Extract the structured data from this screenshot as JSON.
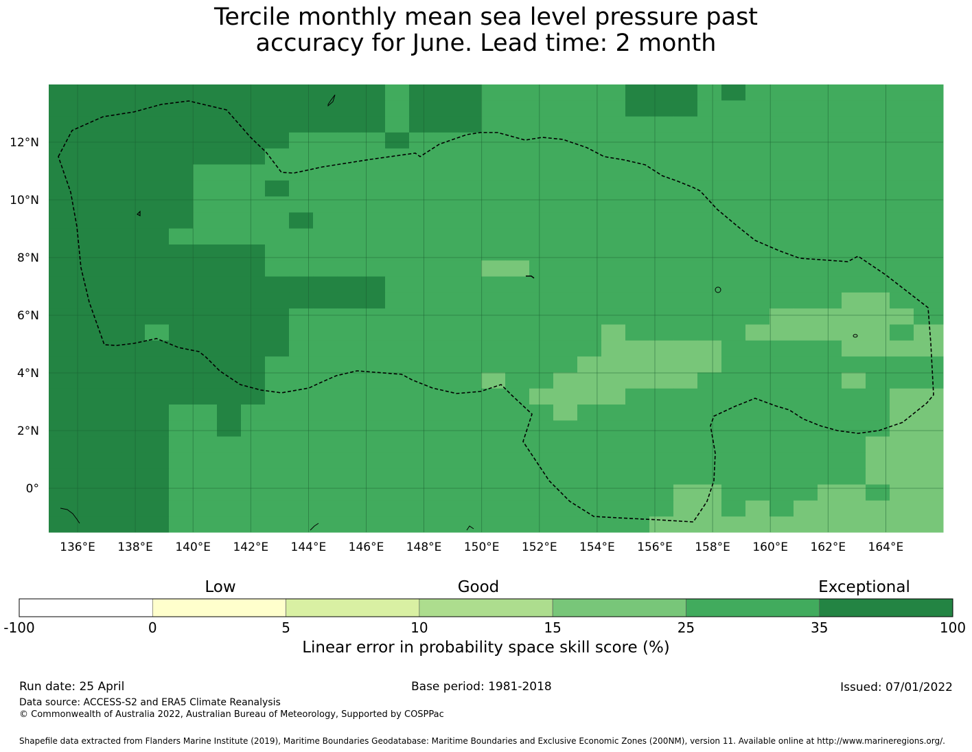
{
  "title": {
    "line1": "Tercile monthly mean sea level pressure past",
    "line2": "accuracy for June. Lead time: 2 month"
  },
  "map": {
    "lon_ticks": [
      "136°E",
      "138°E",
      "140°E",
      "142°E",
      "144°E",
      "146°E",
      "148°E",
      "150°E",
      "152°E",
      "154°E",
      "156°E",
      "158°E",
      "160°E",
      "162°E",
      "164°E"
    ],
    "lat_ticks": [
      "12°N",
      "10°N",
      "8°N",
      "6°N",
      "4°N",
      "2°N",
      "0°"
    ],
    "lon_range": [
      135.0,
      166.0
    ],
    "lat_range": [
      -1.5,
      14.0
    ]
  },
  "colorbar": {
    "categories": [
      {
        "word": "Low",
        "at": 1
      },
      {
        "word": "Good",
        "at": 3
      },
      {
        "word": "Exceptional",
        "at": 6
      }
    ],
    "bins": [
      {
        "from": "-100",
        "to": "0",
        "color": "#ffffff"
      },
      {
        "from": "0",
        "to": "5",
        "color": "#ffffcc"
      },
      {
        "from": "5",
        "to": "10",
        "color": "#d9f0a3"
      },
      {
        "from": "10",
        "to": "15",
        "color": "#addd8e"
      },
      {
        "from": "15",
        "to": "25",
        "color": "#78c679"
      },
      {
        "from": "25",
        "to": "35",
        "color": "#41ab5d"
      },
      {
        "from": "35",
        "to": "100",
        "color": "#238443"
      }
    ],
    "tick_labels": [
      "-100",
      "0",
      "5",
      "10",
      "15",
      "25",
      "35",
      "100"
    ],
    "label": "Linear error in probability space skill score (%)"
  },
  "footer": {
    "run_date": "Run date: 25 April",
    "base_period": "Base period: 1981-2018",
    "issued": "Issued: 07/01/2022",
    "data_source": "Data source: ACCESS-S2 and ERA5 Climate Reanalysis",
    "copyright": "© Commonwealth of Australia 2022, Australian Bureau of Meteorology, Supported by COSPPac",
    "shapefile": "Shapefile data extracted from Flanders Marine Institute (2019), Maritime Boundaries Geodatabase: Maritime Boundaries and Exclusive Economic Zones (200NM), version 11. Available online at http://www.marineregions.org/."
  }
}
